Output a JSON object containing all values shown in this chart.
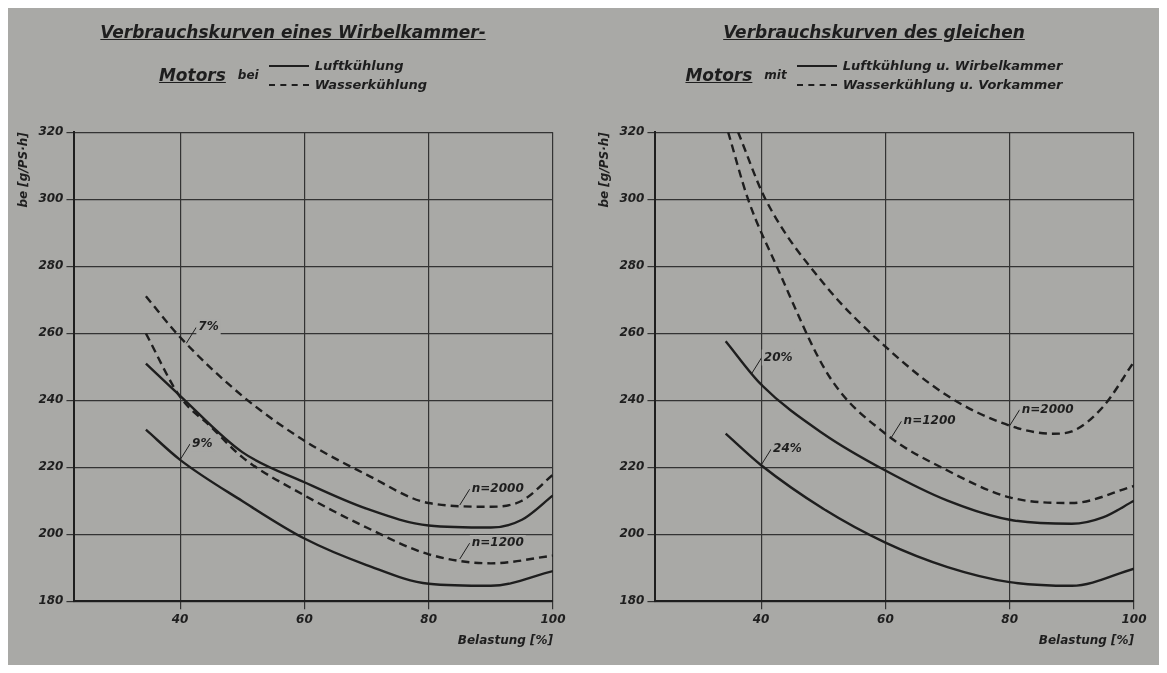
{
  "chart_data": [
    {
      "type": "line",
      "title": "Verbrauchskurven eines Wirbelkammer-",
      "subtitle": "Motors",
      "legend_title": "bei",
      "legend": "top",
      "xlabel": "Belastung [%]",
      "ylabel": "be [g/PS·h]",
      "xlim": [
        23,
        100
      ],
      "xticks": [
        40,
        60,
        80,
        100
      ],
      "ylim": [
        180,
        320
      ],
      "yticks": [
        180,
        200,
        220,
        240,
        260,
        280,
        300,
        320
      ],
      "grid": true,
      "series": [
        {
          "name": "Luftkühlung",
          "color": "#1e1e1e",
          "line_style": "solid",
          "x": [
            34.5,
            40,
            50,
            60,
            70,
            80,
            90,
            95,
            100
          ],
          "values": [
            250.9,
            241.3,
            224.5,
            215.5,
            207.6,
            202.6,
            202,
            204.3,
            211.6
          ]
        },
        {
          "name": "Wasserkühlung",
          "color": "#1e1e1e",
          "line_style": "dashed",
          "x": [
            34.5,
            40,
            50,
            60,
            70,
            80,
            90,
            95,
            100
          ],
          "values": [
            271,
            258.8,
            241.3,
            227.9,
            217.8,
            209.3,
            208.2,
            210,
            217.8
          ]
        },
        {
          "color": "#1e1e1e",
          "line_style": "solid",
          "x": [
            34.5,
            40,
            50,
            60,
            70,
            80,
            90,
            100
          ],
          "values": [
            231.2,
            222.2,
            209.9,
            198.7,
            190.8,
            185.2,
            184.6,
            189
          ]
        },
        {
          "color": "#1e1e1e",
          "line_style": "dashed",
          "x": [
            34.5,
            40,
            45,
            50,
            60,
            70,
            80,
            90,
            100
          ],
          "values": [
            259.9,
            241,
            232,
            223,
            211.6,
            202,
            194,
            191.3,
            193.6
          ]
        }
      ],
      "annotations": [
        {
          "text": "7%",
          "x": 41,
          "y": 257
        },
        {
          "text": "9%",
          "x": 40,
          "y": 222.2
        },
        {
          "text": "n=2000",
          "x": 85,
          "y": 208.7
        },
        {
          "text": "n=1200",
          "x": 85,
          "y": 192.6
        }
      ]
    },
    {
      "type": "line",
      "title": "Verbrauchskurven des gleichen",
      "subtitle": "Motors",
      "legend_title": "mit",
      "legend": "top",
      "xlabel": "Belastung [%]",
      "ylabel": "be [g/PS·h]",
      "xlim": [
        23,
        100
      ],
      "xticks": [
        40,
        60,
        80,
        100
      ],
      "ylim": [
        180,
        320
      ],
      "yticks": [
        180,
        200,
        220,
        240,
        260,
        280,
        300,
        320
      ],
      "grid": true,
      "series": [
        {
          "name": "Luftkühlung u. Wirbelkammer",
          "color": "#1e1e1e",
          "line_style": "solid",
          "x": [
            34.3,
            40,
            50,
            60,
            70,
            80,
            90,
            95,
            100
          ],
          "values": [
            257.6,
            244.7,
            230,
            219,
            210,
            204.3,
            203.1,
            205,
            210
          ]
        },
        {
          "name": "Wasserkühlung u. Vorkammer",
          "color": "#1e1e1e",
          "line_style": "dashed",
          "x": [
            36.3,
            40.7,
            50,
            60,
            70,
            80,
            87,
            90,
            95,
            100
          ],
          "values": [
            320,
            300,
            275,
            256,
            241.3,
            232.4,
            230,
            230.7,
            238,
            251.5
          ]
        },
        {
          "color": "#1e1e1e",
          "line_style": "solid",
          "x": [
            34.3,
            40,
            50,
            60,
            70,
            80,
            90,
            100
          ],
          "values": [
            230,
            220.6,
            207.6,
            197.5,
            190.2,
            185.7,
            184.6,
            189.7
          ]
        },
        {
          "color": "#1e1e1e",
          "line_style": "dashed",
          "x": [
            34.7,
            37.9,
            42.5,
            51,
            60,
            70,
            80,
            90,
            100
          ],
          "values": [
            320,
            300,
            280,
            247,
            230,
            219,
            211,
            209.3,
            214.4
          ]
        }
      ],
      "annotations": [
        {
          "text": "20%",
          "x": 38.5,
          "y": 248
        },
        {
          "text": "24%",
          "x": 40,
          "y": 220.6
        },
        {
          "text": "n=2000",
          "x": 80,
          "y": 232.4
        },
        {
          "text": "n=1200",
          "x": 61,
          "y": 229
        }
      ]
    }
  ]
}
